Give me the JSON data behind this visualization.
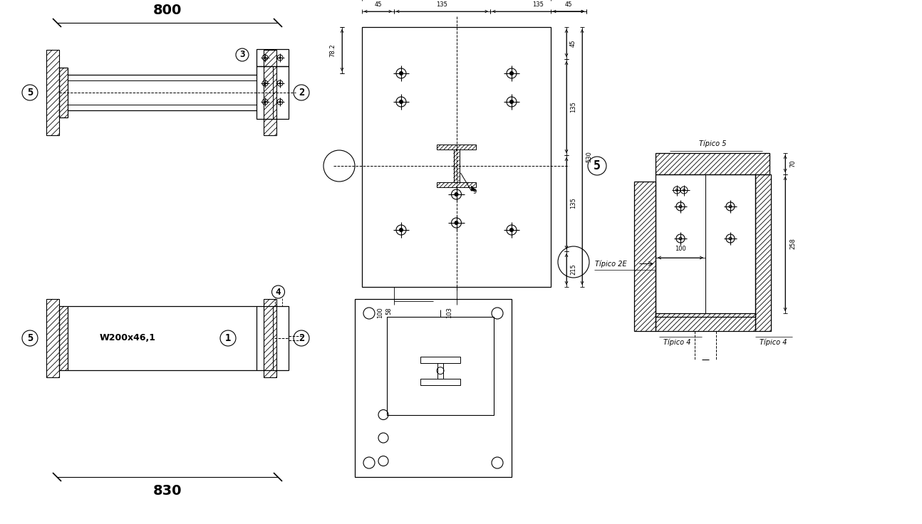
{
  "bg_color": "#ffffff",
  "line_color": "#000000",
  "dim_800": "800",
  "dim_830": "830",
  "label_w200": "W200x46,1",
  "tipico5": "Típico 5",
  "tipico2e": "Típico 2E",
  "tipico4a": "Típico 4",
  "tipico4b": "Típico 4"
}
